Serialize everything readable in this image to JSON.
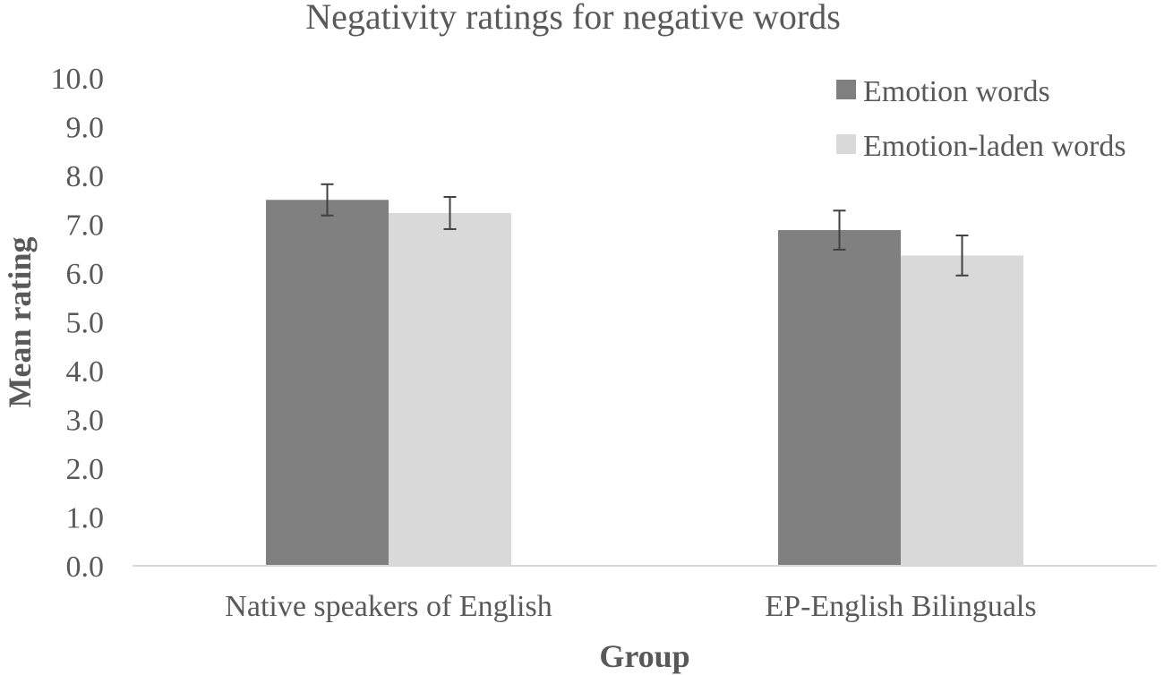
{
  "chart_data": {
    "type": "bar",
    "title": "Negativity ratings for negative words",
    "xlabel": "Group",
    "ylabel": "Mean rating",
    "categories": [
      "Native speakers of English",
      "EP-English Bilinguals"
    ],
    "series": [
      {
        "name": "Emotion words",
        "color": "#808080",
        "values": [
          7.5,
          6.88
        ],
        "error": [
          0.32,
          0.4
        ]
      },
      {
        "name": "Emotion-laden words",
        "color": "#d9d9d9",
        "values": [
          7.23,
          6.36
        ],
        "error": [
          0.33,
          0.41
        ]
      }
    ],
    "ylim": [
      0,
      10
    ],
    "yticks": [
      "0.0",
      "1.0",
      "2.0",
      "3.0",
      "4.0",
      "5.0",
      "6.0",
      "7.0",
      "8.0",
      "9.0",
      "10.0"
    ],
    "grid": false,
    "legend_position": "top-right"
  }
}
